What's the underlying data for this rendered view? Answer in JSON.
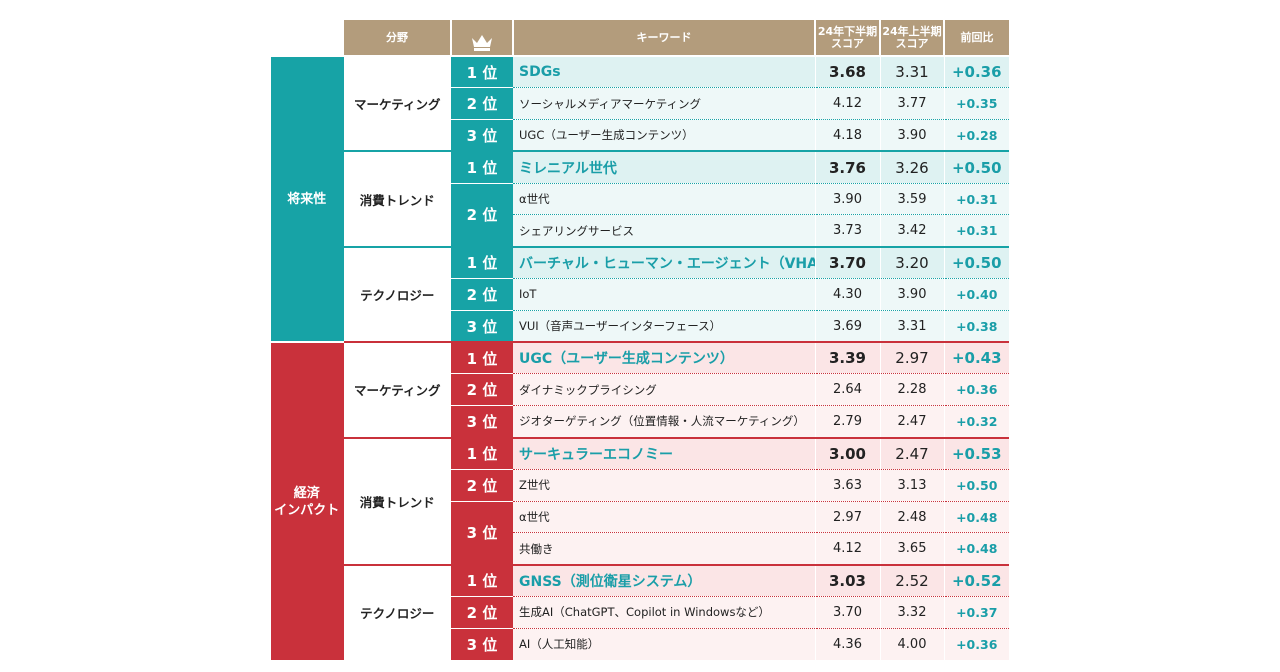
{
  "header": {
    "field": "分野",
    "keyword": "キーワード",
    "score_h2": "24年下半期\nスコア",
    "score_h1": "24年上半期\nスコア",
    "change": "前回比"
  },
  "sections": [
    {
      "label": "将来性",
      "groups": [
        {
          "field": "マーケティング",
          "ranks": [
            {
              "rank": "1 位",
              "items": [
                {
                  "keyword": "SDGs",
                  "score_h2": "3.68",
                  "score_h1": "3.31",
                  "change": "+0.36"
                }
              ]
            },
            {
              "rank": "2 位",
              "items": [
                {
                  "keyword": "ソーシャルメディアマーケティング",
                  "score_h2": "4.12",
                  "score_h1": "3.77",
                  "change": "+0.35"
                }
              ]
            },
            {
              "rank": "3 位",
              "items": [
                {
                  "keyword": "UGC（ユーザー生成コンテンツ）",
                  "score_h2": "4.18",
                  "score_h1": "3.90",
                  "change": "+0.28"
                }
              ]
            }
          ]
        },
        {
          "field": "消費トレンド",
          "ranks": [
            {
              "rank": "1 位",
              "items": [
                {
                  "keyword": "ミレニアル世代",
                  "score_h2": "3.76",
                  "score_h1": "3.26",
                  "change": "+0.50"
                }
              ]
            },
            {
              "rank": "2 位",
              "items": [
                {
                  "keyword": "α世代",
                  "score_h2": "3.90",
                  "score_h1": "3.59",
                  "change": "+0.31"
                },
                {
                  "keyword": "シェアリングサービス",
                  "score_h2": "3.73",
                  "score_h1": "3.42",
                  "change": "+0.31"
                }
              ]
            }
          ]
        },
        {
          "field": "テクノロジー",
          "ranks": [
            {
              "rank": "1 位",
              "items": [
                {
                  "keyword": "バーチャル・ヒューマン・エージェント（VHA）",
                  "score_h2": "3.70",
                  "score_h1": "3.20",
                  "change": "+0.50"
                }
              ]
            },
            {
              "rank": "2 位",
              "items": [
                {
                  "keyword": "IoT",
                  "score_h2": "4.30",
                  "score_h1": "3.90",
                  "change": "+0.40"
                }
              ]
            },
            {
              "rank": "3 位",
              "items": [
                {
                  "keyword": "VUI（音声ユーザーインターフェース）",
                  "score_h2": "3.69",
                  "score_h1": "3.31",
                  "change": "+0.38"
                }
              ]
            }
          ]
        }
      ]
    },
    {
      "label": "経済\nインパクト",
      "groups": [
        {
          "field": "マーケティング",
          "ranks": [
            {
              "rank": "1 位",
              "items": [
                {
                  "keyword": "UGC（ユーザー生成コンテンツ）",
                  "score_h2": "3.39",
                  "score_h1": "2.97",
                  "change": "+0.43"
                }
              ]
            },
            {
              "rank": "2 位",
              "items": [
                {
                  "keyword": "ダイナミックプライシング",
                  "score_h2": "2.64",
                  "score_h1": "2.28",
                  "change": "+0.36"
                }
              ]
            },
            {
              "rank": "3 位",
              "items": [
                {
                  "keyword": "ジオターゲティング（位置情報・人流マーケティング）",
                  "score_h2": "2.79",
                  "score_h1": "2.47",
                  "change": "+0.32"
                }
              ]
            }
          ]
        },
        {
          "field": "消費トレンド",
          "ranks": [
            {
              "rank": "1 位",
              "items": [
                {
                  "keyword": "サーキュラーエコノミー",
                  "score_h2": "3.00",
                  "score_h1": "2.47",
                  "change": "+0.53"
                }
              ]
            },
            {
              "rank": "2 位",
              "items": [
                {
                  "keyword": "Z世代",
                  "score_h2": "3.63",
                  "score_h1": "3.13",
                  "change": "+0.50"
                }
              ]
            },
            {
              "rank": "3 位",
              "items": [
                {
                  "keyword": "α世代",
                  "score_h2": "2.97",
                  "score_h1": "2.48",
                  "change": "+0.48"
                },
                {
                  "keyword": "共働き",
                  "score_h2": "4.12",
                  "score_h1": "3.65",
                  "change": "+0.48"
                }
              ]
            }
          ]
        },
        {
          "field": "テクノロジー",
          "ranks": [
            {
              "rank": "1 位",
              "items": [
                {
                  "keyword": "GNSS（測位衛星システム）",
                  "score_h2": "3.03",
                  "score_h1": "2.52",
                  "change": "+0.52"
                }
              ]
            },
            {
              "rank": "2 位",
              "items": [
                {
                  "keyword": "生成AI（ChatGPT、Copilot in Windowsなど）",
                  "score_h2": "3.70",
                  "score_h1": "3.32",
                  "change": "+0.37"
                }
              ]
            },
            {
              "rank": "3 位",
              "items": [
                {
                  "keyword": "AI（人工知能）",
                  "score_h2": "4.36",
                  "score_h1": "4.00",
                  "change": "+0.36"
                }
              ]
            }
          ]
        }
      ]
    }
  ]
}
